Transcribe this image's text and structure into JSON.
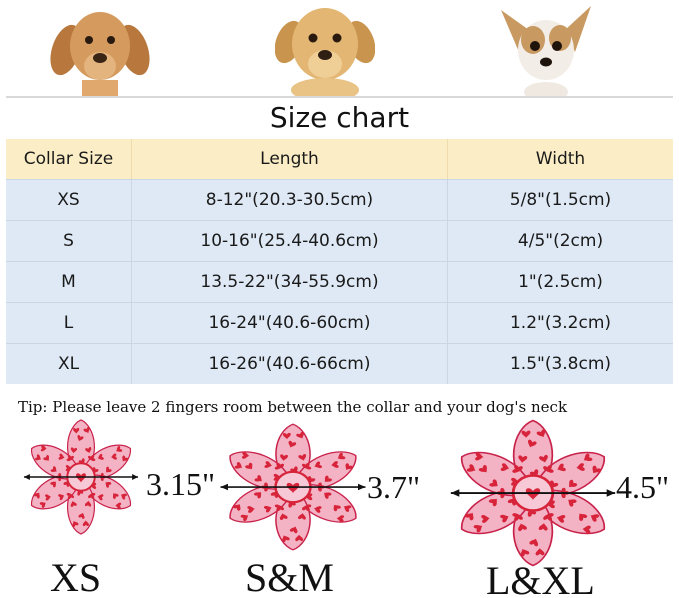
{
  "title": "Size chart",
  "table": {
    "headers": [
      "Collar Size",
      "Length",
      "Width"
    ],
    "rows": [
      [
        "XS",
        "8-12\"(20.3-30.5cm)",
        "5/8\"(1.5cm)"
      ],
      [
        "S",
        "10-16\"(25.4-40.6cm)",
        "4/5\"(2cm)"
      ],
      [
        "M",
        "13.5-22\"(34-55.9cm)",
        "1\"(2.5cm)"
      ],
      [
        "L",
        "16-24\"(40.6-60cm)",
        "1.2\"(3.2cm)"
      ],
      [
        "XL",
        "16-26\"(40.6-66cm)",
        "1.5\"(3.8cm)"
      ]
    ]
  },
  "tip": "Tip: Please leave 2 fingers room between the collar and your dog's neck",
  "flowers": [
    {
      "measure": "3.15\"",
      "size": "XS"
    },
    {
      "measure": "3.7\"",
      "size": "S&M"
    },
    {
      "measure": "4.5\"",
      "size": "L&XL"
    }
  ],
  "colors": {
    "header_bg": "#fbeec6",
    "row_bg": "#dee9f5",
    "petal_pink": "#f3b3c5",
    "heart_red": "#d8243a"
  },
  "icons": [
    "dachshund-puppy-photo",
    "golden-retriever-puppy-photo",
    "chihuahua-photo",
    "heart-flower-icon"
  ]
}
